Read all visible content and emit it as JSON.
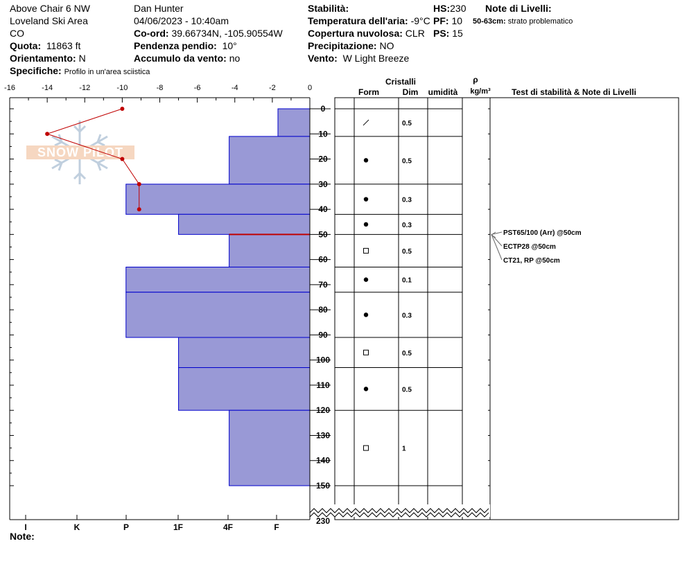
{
  "header": {
    "location_name": "Above Chair 6 NW",
    "area": "Loveland Ski Area",
    "state": "CO",
    "elevation_label": "Quota:",
    "elevation_value": "11863 ft",
    "aspect_label": "Orientamento:",
    "aspect_value": "N",
    "specifics_label": "Specifiche:",
    "specifics_value": "Profilo in un'area sciistica",
    "observer": "Dan Hunter",
    "datetime": "04/06/2023 - 10:40am",
    "coord_label": "Co-ord:",
    "coord_value": "39.66734N, -105.90554W",
    "slope_label": "Pendenza pendio:",
    "slope_value": "10°",
    "wind_load_label": "Accumulo da vento:",
    "wind_load_value": "no",
    "stability_label": "Stabilità:",
    "air_temp_label": "Temperatura dell'aria:",
    "air_temp_value": "-9°C",
    "cloud_label": "Copertura nuvolosa:",
    "cloud_value": "CLR",
    "precip_label": "Precipitazione:",
    "precip_value": "NO",
    "wind_label": "Vento:",
    "wind_value": "W Light Breeze",
    "hs_label": "HS:",
    "hs_value": "230",
    "pf_label": "PF:",
    "pf_value": "10",
    "ps_label": "PS:",
    "ps_value": "15",
    "layer_notes_label": "Note di Livelli:",
    "layer_note_range": "50-63cm:",
    "layer_note_text": "strato problematico"
  },
  "table_headers": {
    "crystals": "Cristalli",
    "form": "Form",
    "dim": "Dim",
    "humidity": "umidità",
    "rho": "ρ",
    "density_unit": "kg/m³",
    "tests": "Test di stabilità & Note di Livelli"
  },
  "footer": {
    "note_label": "Note:"
  },
  "watermark": {
    "text": "SNOW PILOT",
    "icon": "snowflake-icon"
  },
  "chart_data": {
    "type": "snow-profile",
    "depth_axis": {
      "ticks": [
        0,
        10,
        20,
        30,
        40,
        50,
        60,
        70,
        80,
        90,
        100,
        110,
        120,
        130,
        140,
        150
      ],
      "bottom_label": "230",
      "range": [
        0,
        150
      ]
    },
    "temperature_axis": {
      "ticks": [
        -16,
        -14,
        -12,
        -10,
        -8,
        -6,
        -4,
        -2,
        0
      ],
      "range": [
        -16,
        0
      ]
    },
    "hardness_axis": {
      "labels": [
        "I",
        "K",
        "P",
        "1F",
        "4F",
        "F"
      ]
    },
    "temperature_profile": [
      {
        "depth": 0,
        "temp": -10
      },
      {
        "depth": 10,
        "temp": -14
      },
      {
        "depth": 20,
        "temp": -10
      },
      {
        "depth": 30,
        "temp": -9.1
      },
      {
        "depth": 40,
        "temp": -9.1
      }
    ],
    "hardness_bars": [
      {
        "top": 0,
        "bottom": 11,
        "temp_left": -1.7
      },
      {
        "top": 11,
        "bottom": 30,
        "temp_left": -4.3
      },
      {
        "top": 30,
        "bottom": 42,
        "temp_left": -9.8
      },
      {
        "top": 42,
        "bottom": 50,
        "temp_left": -7.0
      },
      {
        "top": 50,
        "bottom": 63,
        "temp_left": -4.3
      },
      {
        "top": 63,
        "bottom": 73,
        "temp_left": -9.8
      },
      {
        "top": 73,
        "bottom": 91,
        "temp_left": -9.8
      },
      {
        "top": 91,
        "bottom": 103,
        "temp_left": -7.0
      },
      {
        "top": 103,
        "bottom": 120,
        "temp_left": -7.0
      },
      {
        "top": 120,
        "bottom": 150,
        "temp_left": -4.3
      }
    ],
    "problem_layer_depth": 50,
    "layer_boundaries": [
      0,
      11,
      30,
      42,
      50,
      63,
      73,
      91,
      103,
      120,
      150
    ],
    "crystals": [
      {
        "top": 0,
        "bottom": 11,
        "form": "slash",
        "dim": "0.5"
      },
      {
        "top": 11,
        "bottom": 30,
        "form": "dot",
        "dim": "0.5"
      },
      {
        "top": 30,
        "bottom": 42,
        "form": "dot",
        "dim": "0.3"
      },
      {
        "top": 42,
        "bottom": 50,
        "form": "dot",
        "dim": "0.3"
      },
      {
        "top": 50,
        "bottom": 63,
        "form": "square",
        "dim": "0.5"
      },
      {
        "top": 63,
        "bottom": 73,
        "form": "dot",
        "dim": "0.1"
      },
      {
        "top": 73,
        "bottom": 91,
        "form": "dot",
        "dim": "0.3"
      },
      {
        "top": 91,
        "bottom": 103,
        "form": "square",
        "dim": "0.5"
      },
      {
        "top": 103,
        "bottom": 120,
        "form": "dot",
        "dim": "0.5"
      },
      {
        "top": 120,
        "bottom": 150,
        "form": "square",
        "dim": "1"
      }
    ],
    "stability_tests": [
      {
        "text": "PST65/100 (Arr) @50cm",
        "depth": 50
      },
      {
        "text": "ECTP28 @50cm",
        "depth": 50
      },
      {
        "text": "CT21, RP @50cm",
        "depth": 50
      }
    ],
    "colors": {
      "bars": "#9999d6",
      "bar_edge": "#0000cc",
      "temp_line": "#c00000",
      "problem_layer": "#c00000"
    }
  }
}
